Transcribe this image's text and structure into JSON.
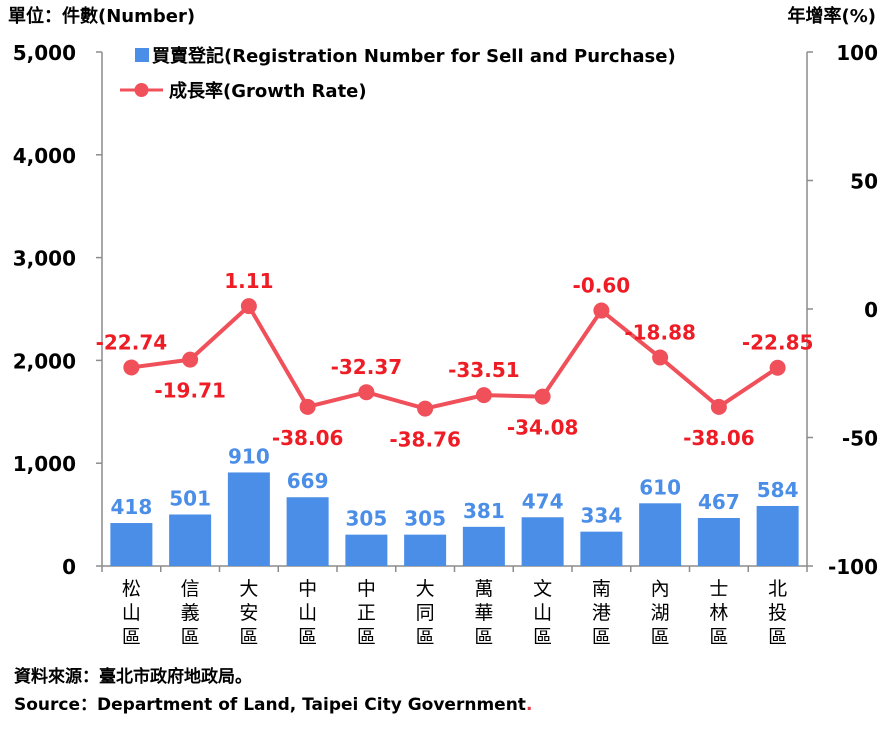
{
  "chart_data": {
    "type": "bar+line",
    "categories": [
      "松山區",
      "信義區",
      "大安區",
      "中山區",
      "中正區",
      "大同區",
      "萬華區",
      "文山區",
      "南港區",
      "內湖區",
      "士林區",
      "北投區"
    ],
    "series": [
      {
        "name": "買賣登記(Registration Number for Sell and Purchase)",
        "type": "bar",
        "axis": "left",
        "color": "#4b8ee8",
        "label_color": "#4b8ee8",
        "values": [
          418,
          501,
          910,
          669,
          305,
          305,
          381,
          474,
          334,
          610,
          467,
          584
        ],
        "labels": [
          "418",
          "501",
          "910",
          "669",
          "305",
          "305",
          "381",
          "474",
          "334",
          "610",
          "467",
          "584"
        ]
      },
      {
        "name": "成長率(Growth Rate)",
        "type": "line",
        "axis": "right",
        "color": "#f0505a",
        "label_color": "#ee1c25",
        "values": [
          -22.74,
          -19.71,
          1.11,
          -38.06,
          -32.37,
          -38.76,
          -33.51,
          -34.08,
          -0.6,
          -18.88,
          -38.06,
          -22.85
        ],
        "labels": [
          "-22.74",
          "-19.71",
          "1.11",
          "-38.06",
          "-32.37",
          "-38.76",
          "-33.51",
          "-34.08",
          "-0.60",
          "-18.88",
          "-38.06",
          "-22.85"
        ]
      }
    ],
    "left_axis": {
      "title": "單位：件數(Number)",
      "range": [
        0,
        5000
      ],
      "ticks": [
        0,
        1000,
        2000,
        3000,
        4000,
        5000
      ],
      "tick_labels": [
        "0",
        "1,000",
        "2,000",
        "3,000",
        "4,000",
        "5,000"
      ]
    },
    "right_axis": {
      "title": "年增率(%)",
      "range": [
        -100,
        100
      ],
      "ticks": [
        -100,
        -50,
        0,
        50,
        100
      ],
      "tick_labels": [
        "-100",
        "-50",
        "0",
        "50",
        "100"
      ]
    },
    "legend_position": "top-center",
    "grid": false
  },
  "footer": {
    "source_cn": "資料來源：臺北市政府地政局。",
    "source_en": "Source：Department of Land, Taipei City Government",
    "source_en_end": "."
  }
}
